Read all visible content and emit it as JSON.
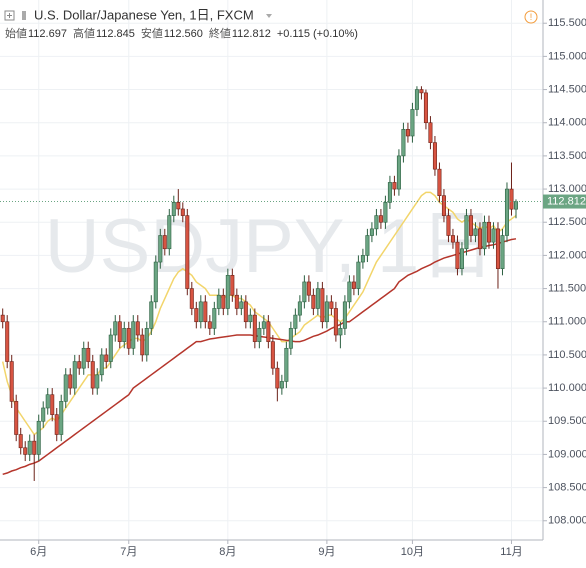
{
  "chart_data": {
    "type": "candlestick",
    "title": "U.S. Dollar/Japanese Yen, 1日, FXCM",
    "watermark": "USDJPY, 1日",
    "ohlc_header": [
      {
        "label": "始値",
        "value": "112.697"
      },
      {
        "label": "高値",
        "value": "112.845"
      },
      {
        "label": "安値",
        "value": "112.560"
      },
      {
        "label": "終値",
        "value": "112.812"
      }
    ],
    "change": "+0.115 (+0.10%)",
    "last_price": {
      "value": 112.812,
      "label": "112.812"
    },
    "up_color": "#6ba583",
    "down_color": "#d75442",
    "open": [
      111.1,
      111.0,
      110.4,
      109.8,
      109.3,
      109.1,
      109.0,
      109.2,
      109.0,
      109.5,
      109.7,
      109.9,
      109.6,
      109.3,
      109.8,
      110.2,
      110.0,
      110.4,
      110.3,
      110.6,
      110.4,
      110.0,
      110.2,
      110.5,
      110.4,
      110.8,
      111.0,
      110.7,
      110.9,
      110.6,
      111.0,
      110.8,
      110.5,
      110.9,
      111.3,
      111.9,
      112.3,
      112.1,
      112.6,
      112.8,
      112.7,
      112.6,
      111.5,
      111.2,
      111.0,
      111.3,
      111.0,
      110.9,
      111.2,
      111.4,
      111.2,
      111.7,
      111.4,
      111.2,
      111.3,
      111.0,
      111.1,
      110.7,
      110.9,
      111.0,
      110.7,
      110.3,
      110.0,
      110.1,
      110.6,
      110.9,
      111.1,
      111.3,
      111.6,
      111.4,
      111.2,
      111.5,
      111.0,
      111.3,
      111.2,
      110.8,
      110.9,
      111.3,
      111.6,
      111.5,
      111.9,
      112.0,
      112.3,
      112.4,
      112.6,
      112.5,
      112.8,
      113.1,
      113.0,
      113.5,
      113.9,
      113.8,
      114.2,
      114.5,
      114.45,
      114.0,
      113.7,
      113.3,
      112.9,
      112.6,
      112.3,
      112.2,
      111.8,
      112.1,
      112.6,
      112.3,
      112.4,
      112.1,
      112.5,
      112.2,
      112.4,
      111.8,
      112.3,
      113.0,
      112.697
    ],
    "high": [
      111.2,
      111.1,
      110.5,
      109.9,
      109.4,
      109.2,
      109.3,
      109.3,
      109.6,
      109.8,
      110.0,
      110.0,
      109.7,
      109.9,
      110.3,
      110.3,
      110.5,
      110.5,
      110.7,
      110.7,
      110.5,
      110.3,
      110.6,
      110.6,
      110.9,
      111.1,
      111.1,
      111.0,
      111.0,
      111.1,
      111.1,
      110.9,
      111.0,
      111.4,
      112.0,
      112.4,
      112.4,
      112.7,
      112.9,
      113.0,
      112.8,
      112.7,
      111.6,
      111.3,
      111.4,
      111.4,
      111.1,
      111.3,
      111.5,
      111.5,
      111.8,
      111.8,
      111.5,
      111.4,
      111.4,
      111.2,
      111.2,
      111.0,
      111.1,
      111.1,
      110.8,
      110.4,
      110.2,
      110.7,
      111.0,
      111.2,
      111.4,
      111.7,
      111.7,
      111.5,
      111.6,
      111.6,
      111.4,
      111.4,
      111.3,
      111.0,
      111.4,
      111.7,
      111.7,
      112.0,
      112.1,
      112.4,
      112.5,
      112.7,
      112.7,
      112.9,
      113.2,
      113.2,
      113.6,
      114.0,
      114.0,
      114.3,
      114.55,
      114.55,
      114.5,
      114.1,
      113.8,
      113.4,
      113.0,
      112.7,
      112.4,
      112.3,
      112.2,
      112.7,
      112.7,
      112.5,
      112.5,
      112.6,
      112.6,
      112.5,
      112.5,
      112.4,
      113.1,
      113.4,
      112.845
    ],
    "low": [
      110.9,
      110.3,
      109.7,
      109.2,
      109.0,
      108.9,
      108.9,
      108.6,
      108.9,
      109.4,
      109.6,
      109.5,
      109.2,
      109.2,
      109.7,
      109.9,
      109.9,
      110.2,
      110.2,
      110.3,
      109.9,
      109.9,
      110.1,
      110.3,
      110.3,
      110.7,
      110.6,
      110.6,
      110.5,
      110.5,
      110.7,
      110.4,
      110.4,
      110.8,
      111.2,
      111.8,
      112.0,
      112.0,
      112.5,
      112.6,
      112.5,
      111.4,
      111.1,
      110.9,
      110.9,
      110.9,
      110.8,
      110.8,
      111.1,
      111.1,
      111.1,
      111.3,
      111.1,
      111.1,
      110.9,
      110.9,
      110.6,
      110.6,
      110.8,
      110.6,
      110.2,
      109.8,
      109.9,
      110.0,
      110.5,
      110.8,
      111.0,
      111.2,
      111.3,
      111.1,
      111.1,
      110.9,
      110.9,
      111.1,
      110.7,
      110.6,
      110.8,
      111.2,
      111.4,
      111.4,
      111.8,
      111.9,
      112.2,
      112.3,
      112.4,
      112.4,
      112.7,
      112.9,
      112.9,
      113.4,
      113.7,
      113.7,
      114.1,
      114.35,
      113.9,
      113.6,
      113.2,
      112.8,
      112.5,
      112.2,
      112.1,
      111.7,
      111.7,
      112.0,
      112.2,
      112.2,
      112.0,
      112.0,
      112.1,
      112.1,
      111.5,
      111.7,
      112.2,
      112.6,
      112.56
    ],
    "close": [
      111.0,
      110.4,
      109.8,
      109.3,
      109.1,
      109.0,
      109.2,
      109.0,
      109.5,
      109.7,
      109.9,
      109.6,
      109.3,
      109.8,
      110.2,
      110.0,
      110.4,
      110.3,
      110.6,
      110.4,
      110.0,
      110.2,
      110.5,
      110.4,
      110.8,
      111.0,
      110.7,
      110.9,
      110.6,
      111.0,
      110.8,
      110.5,
      110.9,
      111.3,
      111.9,
      112.3,
      112.1,
      112.6,
      112.8,
      112.7,
      112.6,
      111.5,
      111.2,
      111.0,
      111.3,
      111.0,
      110.9,
      111.2,
      111.4,
      111.2,
      111.7,
      111.4,
      111.2,
      111.3,
      111.0,
      111.1,
      110.7,
      110.9,
      111.0,
      110.7,
      110.3,
      110.0,
      110.1,
      110.6,
      110.9,
      111.1,
      111.3,
      111.6,
      111.4,
      111.2,
      111.5,
      111.0,
      111.3,
      111.2,
      110.8,
      110.9,
      111.3,
      111.6,
      111.5,
      111.9,
      112.0,
      112.3,
      112.4,
      112.6,
      112.5,
      112.8,
      113.1,
      113.0,
      113.5,
      113.9,
      113.8,
      114.2,
      114.5,
      114.45,
      114.0,
      113.7,
      113.3,
      112.9,
      112.6,
      112.3,
      112.2,
      111.8,
      112.1,
      112.6,
      112.3,
      112.4,
      112.1,
      112.5,
      112.2,
      112.4,
      111.8,
      112.3,
      113.0,
      112.697,
      112.812
    ],
    "ma_lines": [
      {
        "color": "#f2d56b",
        "values": [
          110.4,
          110.1,
          109.9,
          109.7,
          109.6,
          109.5,
          109.4,
          109.3,
          109.35,
          109.4,
          109.5,
          109.55,
          109.5,
          109.6,
          109.7,
          109.8,
          109.9,
          110.0,
          110.1,
          110.2,
          110.2,
          110.2,
          110.3,
          110.3,
          110.4,
          110.5,
          110.6,
          110.65,
          110.7,
          110.75,
          110.75,
          110.7,
          110.75,
          110.85,
          111.0,
          111.2,
          111.35,
          111.5,
          111.65,
          111.75,
          111.8,
          111.75,
          111.7,
          111.6,
          111.55,
          111.5,
          111.4,
          111.4,
          111.4,
          111.35,
          111.4,
          111.4,
          111.35,
          111.35,
          111.3,
          111.25,
          111.15,
          111.1,
          111.05,
          111.0,
          110.9,
          110.8,
          110.7,
          110.7,
          110.75,
          110.8,
          110.85,
          110.95,
          111.0,
          111.05,
          111.1,
          111.05,
          111.1,
          111.1,
          111.05,
          111.0,
          111.05,
          111.15,
          111.25,
          111.35,
          111.45,
          111.6,
          111.75,
          111.9,
          112.0,
          112.1,
          112.2,
          112.3,
          112.4,
          112.5,
          112.6,
          112.7,
          112.8,
          112.9,
          112.95,
          112.95,
          112.9,
          112.8,
          112.75,
          112.7,
          112.65,
          112.55,
          112.5,
          112.55,
          112.5,
          112.45,
          112.4,
          112.45,
          112.4,
          112.45,
          112.35,
          112.4,
          112.5,
          112.55,
          112.6
        ]
      },
      {
        "color": "#b5362c",
        "values": [
          108.7,
          108.72,
          108.75,
          108.77,
          108.8,
          108.82,
          108.85,
          108.87,
          108.9,
          108.95,
          109.0,
          109.05,
          109.1,
          109.15,
          109.2,
          109.25,
          109.3,
          109.35,
          109.4,
          109.45,
          109.5,
          109.55,
          109.6,
          109.65,
          109.7,
          109.75,
          109.8,
          109.85,
          109.9,
          110.0,
          110.05,
          110.1,
          110.15,
          110.2,
          110.25,
          110.3,
          110.35,
          110.4,
          110.45,
          110.5,
          110.55,
          110.6,
          110.65,
          110.7,
          110.7,
          110.72,
          110.74,
          110.75,
          110.76,
          110.77,
          110.78,
          110.79,
          110.8,
          110.8,
          110.8,
          110.8,
          110.79,
          110.78,
          110.77,
          110.76,
          110.75,
          110.74,
          110.73,
          110.72,
          110.71,
          110.7,
          110.7,
          110.72,
          110.75,
          110.78,
          110.8,
          110.83,
          110.86,
          110.9,
          110.93,
          110.96,
          111.0,
          111.0,
          111.05,
          111.1,
          111.15,
          111.2,
          111.25,
          111.3,
          111.35,
          111.4,
          111.45,
          111.5,
          111.6,
          111.65,
          111.7,
          111.73,
          111.76,
          111.8,
          111.83,
          111.86,
          111.9,
          111.93,
          111.96,
          111.98,
          112.0,
          112.02,
          112.04,
          112.06,
          112.08,
          112.1,
          112.12,
          112.13,
          112.15,
          112.16,
          112.18,
          112.2,
          112.22,
          112.24,
          112.25
        ]
      }
    ],
    "xlim": [
      -0.6,
      120
    ],
    "xticks": [
      {
        "value": 8,
        "label": "6月"
      },
      {
        "value": 28,
        "label": "7月"
      },
      {
        "value": 50,
        "label": "8月"
      },
      {
        "value": 72,
        "label": "9月"
      },
      {
        "value": 91,
        "label": "10月"
      },
      {
        "value": 113,
        "label": "11月"
      }
    ],
    "ylim": [
      107.71,
      115.85
    ],
    "yticks": [
      {
        "value": 108,
        "label": "108.000"
      },
      {
        "value": 108.5,
        "label": "108.500"
      },
      {
        "value": 109,
        "label": "109.000"
      },
      {
        "value": 109.5,
        "label": "109.500"
      },
      {
        "value": 110,
        "label": "110.000"
      },
      {
        "value": 110.5,
        "label": "110.500"
      },
      {
        "value": 111,
        "label": "111.000"
      },
      {
        "value": 111.5,
        "label": "111.500"
      },
      {
        "value": 112,
        "label": "112.000"
      },
      {
        "value": 112.5,
        "label": "112.500"
      },
      {
        "value": 113,
        "label": "113.000"
      },
      {
        "value": 113.5,
        "label": "113.500"
      },
      {
        "value": 114,
        "label": "114.000"
      },
      {
        "value": 114.5,
        "label": "114.500"
      },
      {
        "value": 115,
        "label": "115.000"
      },
      {
        "value": 115.5,
        "label": "115.500"
      }
    ],
    "grid": true
  }
}
